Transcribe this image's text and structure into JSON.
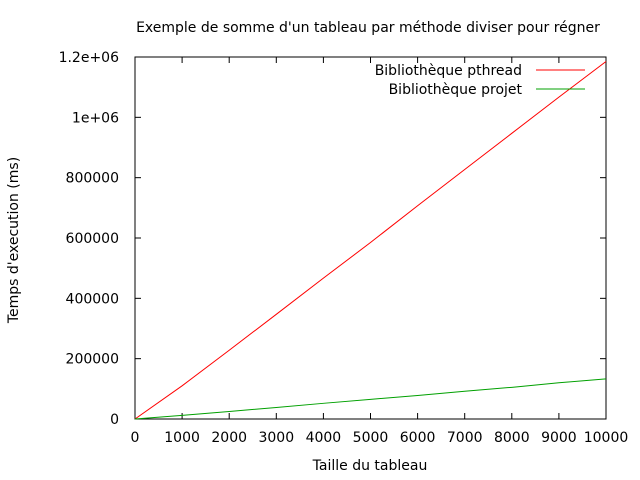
{
  "chart_data": {
    "type": "line",
    "title": "Exemple de somme d'un tableau par méthode diviser pour régner",
    "xlabel": "Taille du tableau",
    "ylabel": "Temps d'execution (ms)",
    "xlim": [
      0,
      10000
    ],
    "ylim": [
      0,
      1200000
    ],
    "xticks": [
      0,
      1000,
      2000,
      3000,
      4000,
      5000,
      6000,
      7000,
      8000,
      9000,
      10000
    ],
    "xtick_labels": [
      "0",
      "1000",
      "2000",
      "3000",
      "4000",
      "5000",
      "6000",
      "7000",
      "8000",
      "9000",
      "10000"
    ],
    "yticks": [
      0,
      200000,
      400000,
      600000,
      800000,
      1000000,
      1200000
    ],
    "ytick_labels": [
      "0",
      "200000",
      "400000",
      "600000",
      "800000",
      "1e+06",
      "1.2e+06"
    ],
    "grid": false,
    "legend_position": "top-right",
    "series": [
      {
        "name": "Bibliothèque pthread",
        "color": "#ff0000",
        "x": [
          0,
          1000,
          2000,
          3000,
          4000,
          5000,
          6000,
          7000,
          8000,
          9000,
          10000
        ],
        "y": [
          0,
          110000,
          228000,
          347000,
          467000,
          585000,
          707000,
          827000,
          947000,
          1067000,
          1185000
        ]
      },
      {
        "name": "Bibliothèque projet",
        "color": "#00a000",
        "x": [
          0,
          1000,
          2000,
          3000,
          4000,
          5000,
          6000,
          7000,
          8000,
          9000,
          10000
        ],
        "y": [
          0,
          12000,
          25000,
          38000,
          52000,
          65000,
          78000,
          92000,
          105000,
          120000,
          133000
        ]
      }
    ]
  }
}
